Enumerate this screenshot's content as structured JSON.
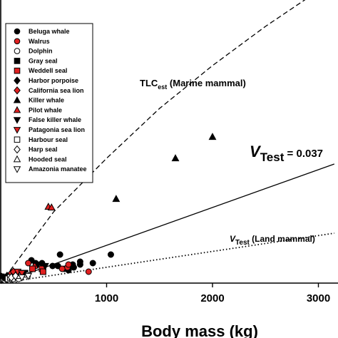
{
  "chart_data": {
    "type": "scatter",
    "xlabel": "Body mass (kg)",
    "x_ticks": [
      "1000",
      "2000",
      "3000"
    ],
    "x_tick_values": [
      1000,
      2000,
      3000
    ],
    "xlim": [
      0,
      3150
    ],
    "ylim": [
      0,
      415
    ],
    "grid": false,
    "legend_position": "top-left",
    "colors": {
      "black": "#000000",
      "red": "#e02020",
      "white": "#ffffff"
    },
    "series": [
      {
        "name": "Beluga whale",
        "marker": "circle",
        "fill": "#000000",
        "points": [
          [
            0,
            10
          ],
          [
            50,
            8
          ],
          [
            290,
            32
          ],
          [
            330,
            28
          ],
          [
            390,
            28
          ],
          [
            490,
            24
          ],
          [
            540,
            24
          ],
          [
            600,
            20
          ],
          [
            640,
            18
          ],
          [
            690,
            22
          ],
          [
            750,
            30
          ],
          [
            870,
            28
          ],
          [
            1040,
            40
          ],
          [
            560,
            40
          ],
          [
            750,
            26
          ],
          [
            680,
            26
          ]
        ]
      },
      {
        "name": "Walrus",
        "marker": "circle",
        "fill": "#e02020",
        "points": [
          [
            260,
            28
          ],
          [
            330,
            24
          ],
          [
            630,
            22
          ],
          [
            640,
            26
          ],
          [
            830,
            16
          ],
          [
            580,
            20
          ]
        ]
      },
      {
        "name": "Dolphin",
        "marker": "circle",
        "fill": "#ffffff",
        "points": [
          [
            40,
            4
          ],
          [
            60,
            6
          ],
          [
            80,
            4
          ],
          [
            110,
            10
          ],
          [
            130,
            4
          ],
          [
            150,
            8
          ],
          [
            170,
            6
          ],
          [
            190,
            12
          ]
        ]
      },
      {
        "name": "Gray seal",
        "marker": "square",
        "fill": "#000000",
        "points": [
          [
            120,
            10
          ],
          [
            180,
            14
          ],
          [
            230,
            14
          ]
        ]
      },
      {
        "name": "Weddell seal",
        "marker": "square",
        "fill": "#e02020",
        "points": [
          [
            300,
            20
          ],
          [
            390,
            20
          ],
          [
            400,
            16
          ]
        ]
      },
      {
        "name": "Harbor porpoise",
        "marker": "diamond",
        "fill": "#000000",
        "points": [
          [
            30,
            8
          ],
          [
            50,
            6
          ],
          [
            60,
            10
          ]
        ]
      },
      {
        "name": "California sea lion",
        "marker": "diamond",
        "fill": "#e02020",
        "points": [
          [
            100,
            14
          ],
          [
            120,
            16
          ],
          [
            150,
            12
          ]
        ]
      },
      {
        "name": "Killer whale",
        "marker": "triangle-up",
        "fill": "#000000",
        "points": [
          [
            1090,
            118
          ],
          [
            1650,
            175
          ],
          [
            2000,
            205
          ]
        ]
      },
      {
        "name": "Pilot whale",
        "marker": "triangle-up",
        "fill": "#e02020",
        "points": [
          [
            450,
            107
          ],
          [
            480,
            106
          ]
        ]
      },
      {
        "name": "False killer whale",
        "marker": "triangle-down",
        "fill": "#000000",
        "points": [
          [
            350,
            26
          ],
          [
            420,
            24
          ]
        ]
      },
      {
        "name": "Patagonia sea lion",
        "marker": "triangle-down",
        "fill": "#e02020",
        "points": [
          [
            160,
            16
          ],
          [
            200,
            14
          ]
        ]
      },
      {
        "name": "Harbour seal",
        "marker": "square",
        "fill": "#ffffff",
        "points": [
          [
            70,
            6
          ],
          [
            90,
            8
          ],
          [
            110,
            6
          ]
        ]
      },
      {
        "name": "Harp seal",
        "marker": "diamond",
        "fill": "#ffffff",
        "points": [
          [
            100,
            8
          ],
          [
            140,
            10
          ]
        ]
      },
      {
        "name": "Hooded seal",
        "marker": "triangle-up",
        "fill": "#ffffff",
        "points": [
          [
            180,
            10
          ],
          [
            250,
            12
          ]
        ]
      },
      {
        "name": "Amazonia manatee",
        "marker": "triangle-down",
        "fill": "#ffffff",
        "points": [
          [
            200,
            8
          ],
          [
            260,
            10
          ]
        ]
      }
    ],
    "lines": [
      {
        "name": "TLC_est_marine",
        "style": "dashed",
        "points": [
          [
            0,
            0
          ],
          [
            500,
            100
          ],
          [
            1000,
            175
          ],
          [
            1500,
            245
          ],
          [
            2000,
            305
          ],
          [
            2500,
            360
          ],
          [
            3000,
            410
          ]
        ]
      },
      {
        "name": "V_test",
        "style": "solid",
        "points": [
          [
            0,
            0
          ],
          [
            3150,
            167
          ]
        ]
      },
      {
        "name": "V_test_land",
        "style": "dotted",
        "points": [
          [
            0,
            0
          ],
          [
            3150,
            70
          ]
        ]
      }
    ],
    "annotations": [
      {
        "main": "TLC",
        "sub": "est",
        "rest": " (Marine mammal)"
      },
      {
        "main": "V",
        "sub": "Test",
        "rest": " = 0.037"
      },
      {
        "main": "V",
        "sub": "Test",
        "rest": " (Land mammal)"
      }
    ]
  }
}
